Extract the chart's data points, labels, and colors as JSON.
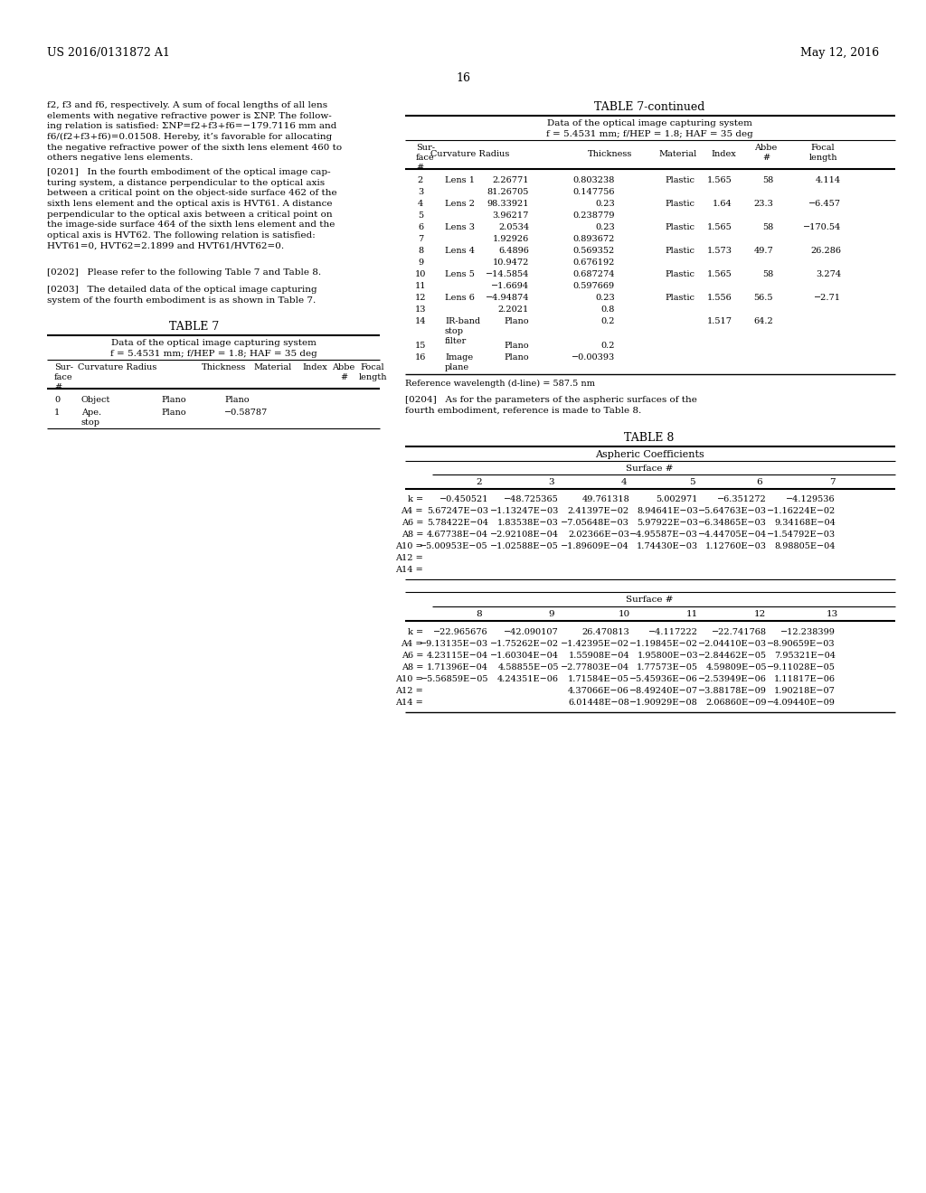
{
  "page_header_left": "US 2016/0131872 A1",
  "page_header_right": "May 12, 2016",
  "page_number": "16",
  "left_text_paragraphs": [
    "f2, f3 and f6, respectively. A sum of focal lengths of all lens\nelements with negative refractive power is ΣNP. The follow-\ning relation is satisfied: ΣNP=f2+f3+f6=−179.7116 mm and\nf6/(f2+f3+f6)=0.01508. Hereby, it's favorable for allocating\nthe negative refractive power of the sixth lens element 460 to\nothers negative lens elements.",
    "[0201]   In the fourth embodiment of the optical image cap-\nturing system, a distance perpendicular to the optical axis\nbetween a critical point on the object-side surface 462 of the\nsixth lens element and the optical axis is HVT61. A distance\nperpendicular to the optical axis between a critical point on\nthe image-side surface 464 of the sixth lens element and the\noptical axis is HVT62. The following relation is satisfied:\nHVT61=0, HVT62=2.1899 and HVT61/HVT62=0.",
    "[0202]   Please refer to the following Table 7 and Table 8.",
    "[0203]   The detailed data of the optical image capturing\nsystem of the fourth embodiment is as shown in Table 7."
  ],
  "table7_title": "TABLE 7",
  "table7_subtitle1": "Data of the optical image capturing system",
  "table7_subtitle2": "f = 5.4531 mm; f/HEP = 1.8; HAF = 35 deg",
  "table7_headers": [
    "Sur-\nface\n#",
    "Curvature Radius",
    "Thickness",
    "Material",
    "Index",
    "Abbe\n#",
    "Focal\nlength"
  ],
  "table7_rows_left": [
    [
      "0",
      "Object",
      "Plano",
      "Plano",
      "",
      "",
      "",
      ""
    ],
    [
      "1",
      "Ape.\nstop",
      "Plano",
      "−0.58787",
      "",
      "",
      "",
      ""
    ]
  ],
  "table7cont_title": "TABLE 7-continued",
  "table7cont_subtitle1": "Data of the optical image capturing system",
  "table7cont_subtitle2": "f = 5.4531 mm; f/HEP = 1.8; HAF = 35 deg",
  "table7cont_rows": [
    [
      "2",
      "Lens 1",
      "2.26771",
      "0.803238",
      "Plastic",
      "1.565",
      "58",
      "4.114"
    ],
    [
      "3",
      "",
      "81.26705",
      "0.147756",
      "",
      "",
      "",
      ""
    ],
    [
      "4",
      "Lens 2",
      "98.33921",
      "0.23",
      "Plastic",
      "1.64",
      "23.3",
      "−6.457"
    ],
    [
      "5",
      "",
      "3.96217",
      "0.238779",
      "",
      "",
      "",
      ""
    ],
    [
      "6",
      "Lens 3",
      "2.0534",
      "0.23",
      "Plastic",
      "1.565",
      "58",
      "−170.54"
    ],
    [
      "7",
      "",
      "1.92926",
      "0.893672",
      "",
      "",
      "",
      ""
    ],
    [
      "8",
      "Lens 4",
      "6.4896",
      "0.569352",
      "Plastic",
      "1.573",
      "49.7",
      "26.286"
    ],
    [
      "9",
      "",
      "10.9472",
      "0.676192",
      "",
      "",
      "",
      ""
    ],
    [
      "10",
      "Lens 5",
      "−14.5854",
      "0.687274",
      "Plastic",
      "1.565",
      "58",
      "3.274"
    ],
    [
      "11",
      "",
      "−1.6694",
      "0.597669",
      "",
      "",
      "",
      ""
    ],
    [
      "12",
      "Lens 6",
      "−4.94874",
      "0.23",
      "Plastic",
      "1.556",
      "56.5",
      "−2.71"
    ],
    [
      "13",
      "",
      "2.2021",
      "0.8",
      "",
      "",
      "",
      ""
    ],
    [
      "14",
      "IR-band\nstop\nfilter",
      "Plano",
      "0.2",
      "",
      "1.517",
      "64.2",
      ""
    ],
    [
      "15",
      "",
      "Plano",
      "0.2",
      "",
      "",
      "",
      ""
    ],
    [
      "16",
      "Image\nplane",
      "Plano",
      "−0.00393",
      "",
      "",
      "",
      ""
    ]
  ],
  "table7cont_footnote": "Reference wavelength (d-line) = 587.5 nm",
  "para_0204": "[0204]   As for the parameters of the aspheric surfaces of the\nfourth embodiment, reference is made to Table 8.",
  "table8_title": "TABLE 8",
  "table8_subtitle": "Aspheric Coefficients",
  "table8_surface_label": "Surface #",
  "table8_top_headers": [
    "2",
    "3",
    "4",
    "5",
    "6",
    "7"
  ],
  "table8_top_rows": [
    [
      "k =",
      "−0.450521",
      "−48.725365",
      "49.761318",
      "5.002971",
      "−6.351272",
      "−4.129536"
    ],
    [
      "A4 =",
      "5.67247E−03",
      "−1.13247E−03",
      "2.41397E−02",
      "8.94641E−03",
      "−5.64763E−03",
      "−1.16224E−02"
    ],
    [
      "A6 =",
      "5.78422E−04",
      "1.83538E−03",
      "−7.05648E−03",
      "5.97922E−03",
      "−6.34865E−03",
      "9.34168E−04"
    ],
    [
      "A8 =",
      "4.67738E−04",
      "−2.92108E−04",
      "2.02366E−03",
      "−4.95587E−03",
      "−4.44705E−04",
      "−1.54792E−03"
    ],
    [
      "A10 =",
      "−5.00953E−05",
      "−1.02588E−05",
      "−1.89609E−04",
      "1.74430E−03",
      "1.12760E−03",
      "8.98805E−04"
    ],
    [
      "A12 =",
      "",
      "",
      "",
      "",
      "",
      ""
    ],
    [
      "A14 =",
      "",
      "",
      "",
      "",
      "",
      ""
    ]
  ],
  "table8_bot_headers": [
    "8",
    "9",
    "10",
    "11",
    "12",
    "13"
  ],
  "table8_bot_rows": [
    [
      "k =",
      "−22.965676",
      "−42.090107",
      "26.470813",
      "−4.117222",
      "−22.741768",
      "−12.238399"
    ],
    [
      "A4 =",
      "−9.13135E−03",
      "−1.75262E−02",
      "−1.42395E−02",
      "−1.19845E−02",
      "−2.04410E−03",
      "−8.90659E−03"
    ],
    [
      "A6 =",
      "4.23115E−04",
      "−1.60304E−04",
      "1.55908E−04",
      "1.95800E−03",
      "−2.84462E−05",
      "7.95321E−04"
    ],
    [
      "A8 =",
      "1.71396E−04",
      "4.58855E−05",
      "−2.77803E−04",
      "1.77573E−05",
      "4.59809E−05",
      "−9.11028E−05"
    ],
    [
      "A10 =",
      "−5.56859E−05",
      "4.24351E−06",
      "1.71584E−05",
      "−5.45936E−06",
      "−2.53949E−06",
      "1.11817E−06"
    ],
    [
      "A12 =",
      "",
      "",
      "4.37066E−06",
      "−8.49240E−07",
      "−3.88178E−09",
      "1.90218E−07"
    ],
    [
      "A14 =",
      "",
      "",
      "6.01448E−08",
      "−1.90929E−08",
      "2.06860E−09",
      "−4.09440E−09"
    ]
  ],
  "bg_color": "#ffffff",
  "text_color": "#000000",
  "font_size_body": 7.5,
  "font_size_header": 8.5,
  "font_size_table": 7.0,
  "font_size_title": 8.5
}
